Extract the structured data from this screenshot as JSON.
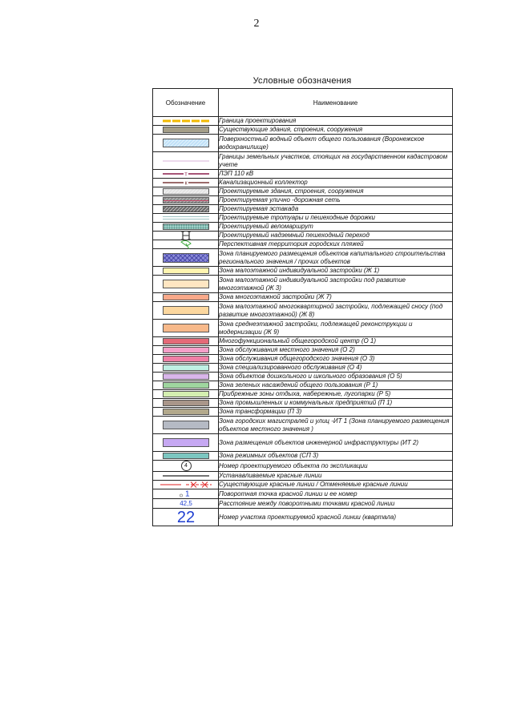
{
  "page_number": "2",
  "legend": {
    "title": "Условные обозначения",
    "headers": {
      "symbol": "Обозначение",
      "name": "Наименование"
    },
    "rows": [
      {
        "name": "Граница проектирования",
        "kind": "dash-line",
        "color": "#f2b900"
      },
      {
        "name": "Существующие здания, строения, сооружения",
        "kind": "fill",
        "color": "#a49e88"
      },
      {
        "name": "Поверхностный водный объект общего пользования (Воронежское водохранилище)",
        "kind": "hatch",
        "color": "#bfe0f7"
      },
      {
        "name": "Границы земельных участков, стоящих на государственном кадастровом учете",
        "kind": "thin-line",
        "color": "#d9b3d9"
      },
      {
        "name": "ЛЭП 110 кВ",
        "kind": "marked-line",
        "color": "#8a1d4a",
        "mark": "т"
      },
      {
        "name": "Канализационный коллектор",
        "kind": "marked-line",
        "color": "#7a3a3a",
        "mark": "к"
      },
      {
        "name": "Проектируемые здания, строения, сооружения",
        "kind": "hatch",
        "color": "#e3e3e3"
      },
      {
        "name": "Проектируемая улично -дорожная сеть",
        "kind": "road",
        "color": "#8c8c8c"
      },
      {
        "name": "Проектируемая эстакада",
        "kind": "hatch",
        "color": "#6a6a6a"
      },
      {
        "name": "Проектируемые тротуары и пешеходные дорожки",
        "kind": "double-line",
        "color": "#7fb3b3"
      },
      {
        "name": "Проектируемый веломаршрут",
        "kind": "dots",
        "color": "#9fd1c9"
      },
      {
        "name": "Проектируемый надземный пешеходный переход",
        "kind": "bridge",
        "color": "#333333"
      },
      {
        "name": "Перспективная территория городских пляжей",
        "kind": "beach",
        "color": "#3aa63a"
      },
      {
        "name": "Зона планируемого размещения объектов капитального строительства регионального значения / прочих объектов",
        "kind": "cross-hatch",
        "color": "#8a8ad8"
      },
      {
        "name": "Зона малоэтажной индивидуальной застройки (Ж 1)",
        "kind": "fill",
        "color": "#fff5b0"
      },
      {
        "name": "Зона малоэтажной индивидуальной застройки под развитие многоэтажной (Ж 3)",
        "kind": "fill",
        "color": "#ffe6c2"
      },
      {
        "name": "Зона многоэтажной застройки (Ж 7)",
        "kind": "fill",
        "color": "#f9a98a"
      },
      {
        "name": "Зона малоэтажной многоквартирной застройки, подлежащей сносу (под развитие многоэтажной) (Ж 8)",
        "kind": "fill",
        "color": "#fcd79e"
      },
      {
        "name": "Зона среднеэтажной застройки, подлежащей реконструкции и модернизации (Ж 9)",
        "kind": "fill",
        "color": "#f7b98a"
      },
      {
        "name": "Многофункциональный общегородской центр (О 1)",
        "kind": "fill",
        "color": "#e56a78"
      },
      {
        "name": "Зона обслуживания местного значения (О 2)",
        "kind": "fill",
        "color": "#f59fc8"
      },
      {
        "name": "Зона обслуживания общегородского значения (О 3)",
        "kind": "fill",
        "color": "#f07fa6"
      },
      {
        "name": "Зона специализированного обслуживания (О 4)",
        "kind": "fill",
        "color": "#bff0e4"
      },
      {
        "name": "Зона объектов дошкольного и школьного образования (О 5)",
        "kind": "fill",
        "color": "#d9b6ea"
      },
      {
        "name": "Зона зеленых насаждений общего пользования (Р 1)",
        "kind": "fill",
        "color": "#9fd69f"
      },
      {
        "name": "Прибрежные зоны отдыха, набережные, лугопарки (Р 5)",
        "kind": "fill",
        "color": "#d4efb0"
      },
      {
        "name": "Зона промышленных и коммунальных предприятий (П 1)",
        "kind": "fill",
        "color": "#a9968a"
      },
      {
        "name": "Зона трансформации (П 3)",
        "kind": "fill",
        "color": "#b3a98c"
      },
      {
        "name": "Зона городских магистралей и улиц -ИТ 1 (Зона планируемого размещения объектов местного значения )",
        "kind": "fill",
        "color": "#b5bac4"
      },
      {
        "name": "Зона размещения объектов инженерной инфраструктуры (ИТ 2)",
        "kind": "fill",
        "color": "#c6a8f2"
      },
      {
        "name": "Зона режимных объектов (СП 3)",
        "kind": "fill",
        "color": "#7cc6c0"
      },
      {
        "name": "Номер проектируемого объекта по экспликации",
        "kind": "circle-number",
        "label": "4"
      },
      {
        "name": "Устанавливаемые красные линии",
        "kind": "solid-line",
        "color": "#222222"
      },
      {
        "name": "Существующие красные линии / Отменяемые красные линии",
        "kind": "red-lines",
        "color": "#e02020"
      },
      {
        "name": "Поворотная точка красной линии и ее номер",
        "kind": "turn-point",
        "label": "1",
        "color": "#1f3fd1"
      },
      {
        "name": "Расстояние между поворотными точками красной линии",
        "kind": "distance",
        "label": "42,5",
        "color": "#1f3fd1"
      },
      {
        "name": "Номер участка проектируемой красной линии (квартала)",
        "kind": "big-number",
        "label": "22",
        "color": "#1f3fd1"
      }
    ]
  }
}
